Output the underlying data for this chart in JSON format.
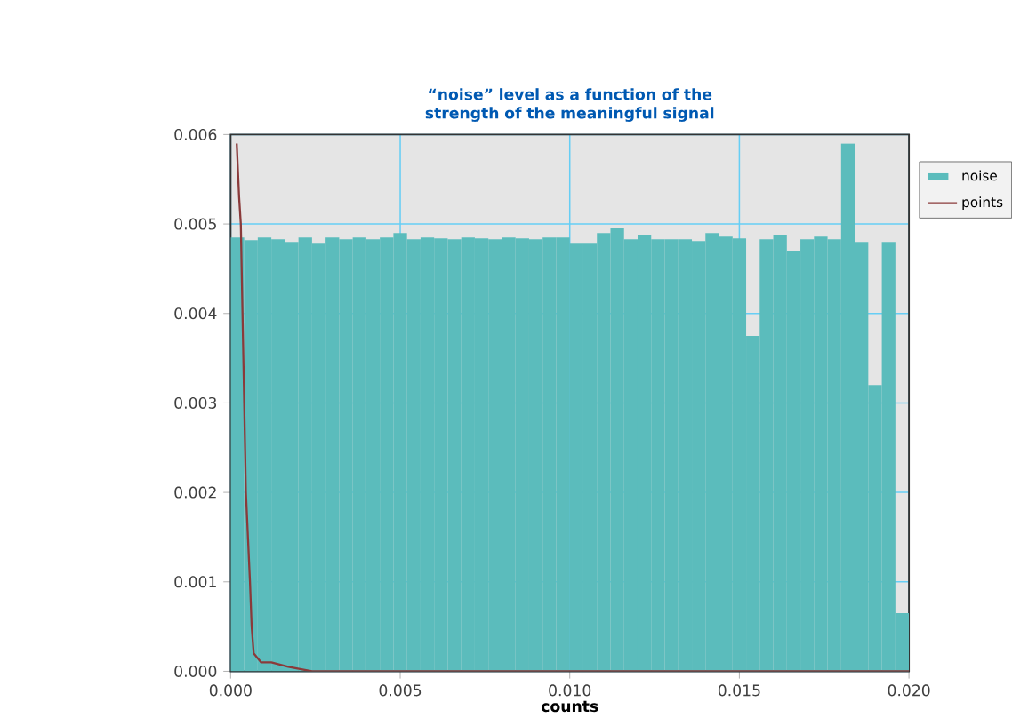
{
  "chart_data": {
    "type": "histogram",
    "title": "“noise” level as a function of the strength of the meaningful signal",
    "xlabel": "counts",
    "bins": [
      0,
      0.0004,
      0.0008,
      0.0012,
      0.0016,
      0.002,
      0.0024,
      0.0028,
      0.0032,
      0.0036,
      0.004,
      0.0044,
      0.0048,
      0.0052,
      0.0056,
      0.006,
      0.0064,
      0.0068,
      0.0072,
      0.0076,
      0.008,
      0.0084,
      0.0088,
      0.0092,
      0.0096,
      0.01,
      0.0104,
      0.0108,
      0.0112,
      0.0116,
      0.012,
      0.0124,
      0.0128,
      0.0132,
      0.0136,
      0.014,
      0.0144,
      0.0148,
      0.0152,
      0.0156,
      0.016,
      0.0164,
      0.0168,
      0.0172,
      0.0176,
      0.018,
      0.0184,
      0.0188,
      0.0192,
      0.0196,
      0.02
    ],
    "series": [
      {
        "name": "noise",
        "color": "#5bbcbc",
        "values": [
          0.00485,
          0.00482,
          0.00485,
          0.00483,
          0.0048,
          0.00485,
          0.00478,
          0.00485,
          0.00483,
          0.00485,
          0.00483,
          0.00485,
          0.0049,
          0.00483,
          0.00485,
          0.00484,
          0.00483,
          0.00485,
          0.00484,
          0.00483,
          0.00485,
          0.00484,
          0.00483,
          0.00485,
          0.00485,
          0.00478,
          0.00478,
          0.0049,
          0.00495,
          0.00483,
          0.00488,
          0.00483,
          0.00483,
          0.00483,
          0.00481,
          0.0049,
          0.00486,
          0.00484,
          0.00375,
          0.00483,
          0.00488,
          0.0047,
          0.00483,
          0.00486,
          0.00483,
          0.0059,
          0.0048,
          0.0032,
          0.0048,
          0.00065
        ]
      },
      {
        "name": "points",
        "type": "line",
        "color": "#8a3a3a",
        "x": [
          0.00018,
          0.00025,
          0.0003,
          0.00035,
          0.0004,
          0.00045,
          0.00057,
          0.00062,
          0.00068,
          0.0009,
          0.0012,
          0.0017,
          0.0024,
          0.02
        ],
        "values": [
          0.0059,
          0.0053,
          0.005,
          0.004,
          0.003,
          0.002,
          0.001,
          0.0005,
          0.0002,
          0.0001,
          0.0001,
          5e-05,
          0,
          0
        ]
      }
    ],
    "xlim": [
      0,
      0.02
    ],
    "ylim": [
      0,
      0.006
    ],
    "xticks": [
      {
        "value": 0,
        "label": "0.000"
      },
      {
        "value": 0.005,
        "label": "0.005"
      },
      {
        "value": 0.01,
        "label": "0.010"
      },
      {
        "value": 0.015,
        "label": "0.015"
      },
      {
        "value": 0.02,
        "label": "0.020"
      }
    ],
    "yticks": [
      {
        "value": 0,
        "label": "0.000"
      },
      {
        "value": 0.001,
        "label": "0.001"
      },
      {
        "value": 0.002,
        "label": "0.002"
      },
      {
        "value": 0.003,
        "label": "0.003"
      },
      {
        "value": 0.004,
        "label": "0.004"
      },
      {
        "value": 0.005,
        "label": "0.005"
      },
      {
        "value": 0.006,
        "label": "0.006"
      }
    ],
    "grid": true,
    "legend": "right"
  }
}
